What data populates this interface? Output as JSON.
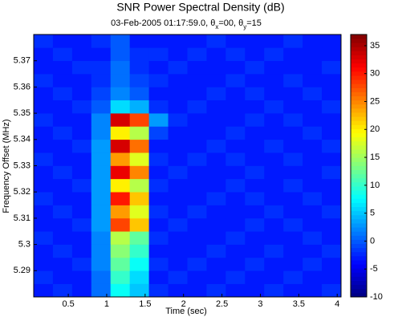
{
  "chart_data": {
    "type": "heatmap",
    "title": "SNR Power Spectral Density (dB)",
    "subtitle": [
      "03-Feb-2005 01:17:59.0,  θ",
      "x",
      "=00, θ",
      "y",
      "=15"
    ],
    "xlabel": "Time (sec)",
    "ylabel": "Frequency Offset (MHz)",
    "x_edges": [
      0.05,
      0.3,
      0.55,
      0.8,
      1.05,
      1.3,
      1.55,
      1.8,
      2.05,
      2.3,
      2.55,
      2.8,
      3.05,
      3.3,
      3.55,
      3.8,
      4.05
    ],
    "y_edges": [
      5.28,
      5.285,
      5.29,
      5.295,
      5.3,
      5.305,
      5.31,
      5.315,
      5.32,
      5.325,
      5.33,
      5.335,
      5.34,
      5.345,
      5.35,
      5.355,
      5.36,
      5.365,
      5.37,
      5.375,
      5.38
    ],
    "z": [
      [
        -3,
        -2,
        -3,
        1,
        8,
        5,
        -2,
        -3,
        -3,
        -2,
        -3,
        -3,
        -2,
        -3,
        -3,
        -2
      ],
      [
        -2,
        -3,
        -3,
        1,
        10,
        6,
        -3,
        -2,
        -3,
        -3,
        -2,
        -3,
        -3,
        -2,
        -3,
        -3
      ],
      [
        -3,
        -3,
        -2,
        2,
        12,
        8,
        -2,
        -3,
        -2,
        -3,
        -3,
        -2,
        -3,
        -3,
        -2,
        -3
      ],
      [
        -3,
        -2,
        -3,
        2,
        14,
        10,
        -3,
        -3,
        -3,
        -2,
        -3,
        -3,
        -2,
        -3,
        -3,
        -2
      ],
      [
        -2,
        -3,
        -3,
        2,
        16,
        12,
        -2,
        -3,
        -3,
        -3,
        -2,
        -3,
        -3,
        -3,
        -2,
        -3
      ],
      [
        -3,
        -3,
        -2,
        3,
        28,
        22,
        -3,
        -2,
        -3,
        -3,
        -3,
        -2,
        -3,
        -2,
        -3,
        -3
      ],
      [
        -3,
        -2,
        -3,
        3,
        24,
        18,
        -2,
        -3,
        -2,
        -3,
        -3,
        -3,
        -2,
        -3,
        -3,
        -2
      ],
      [
        -2,
        -3,
        -3,
        3,
        30,
        22,
        -3,
        -3,
        -3,
        -2,
        -3,
        -2,
        -3,
        -3,
        -2,
        -3
      ],
      [
        -3,
        -3,
        -2,
        3,
        20,
        16,
        -2,
        -3,
        -3,
        -3,
        -2,
        -3,
        -3,
        -2,
        -3,
        -3
      ],
      [
        -3,
        -2,
        -3,
        3,
        32,
        25,
        -3,
        -2,
        -3,
        -3,
        -3,
        -2,
        -3,
        -3,
        -3,
        -2
      ],
      [
        -2,
        -3,
        -3,
        3,
        24,
        18,
        -2,
        -3,
        -2,
        -3,
        -2,
        -3,
        -3,
        -2,
        -3,
        -3
      ],
      [
        -3,
        -3,
        -2,
        3,
        33,
        26,
        -3,
        -3,
        -3,
        -2,
        -3,
        -3,
        -2,
        -3,
        -3,
        -2
      ],
      [
        -3,
        -2,
        -3,
        2,
        20,
        16,
        -1,
        -3,
        -3,
        -3,
        -2,
        -3,
        -3,
        -3,
        -2,
        -3
      ],
      [
        -2,
        -3,
        -3,
        2,
        33,
        28,
        3,
        -2,
        -3,
        -3,
        -3,
        -2,
        -3,
        -2,
        -3,
        -3
      ],
      [
        -3,
        -3,
        -2,
        0,
        6,
        4,
        -2,
        -3,
        -2,
        -3,
        -3,
        -3,
        -2,
        -3,
        -3,
        -2
      ],
      [
        -3,
        -2,
        -3,
        -1,
        2,
        0,
        -3,
        -3,
        -3,
        -2,
        -3,
        -2,
        -3,
        -3,
        -2,
        -3
      ],
      [
        -2,
        -3,
        -3,
        -2,
        1,
        -1,
        -2,
        -3,
        -3,
        -3,
        -2,
        -3,
        -3,
        -2,
        -3,
        -3
      ],
      [
        -3,
        -3,
        -2,
        -2,
        1,
        -2,
        -3,
        -2,
        -3,
        -3,
        -3,
        -2,
        -3,
        -3,
        -3,
        -2
      ],
      [
        -3,
        -2,
        -3,
        -3,
        0,
        -2,
        -2,
        -3,
        -2,
        -3,
        -2,
        -3,
        -2,
        -3,
        -3,
        -3
      ],
      [
        -2,
        -3,
        -3,
        -2,
        0,
        -3,
        -3,
        -3,
        -3,
        -2,
        -3,
        -3,
        -3,
        -2,
        -3,
        -3
      ]
    ],
    "xlim": [
      0.05,
      4.05
    ],
    "xticks": [
      0.5,
      1,
      1.5,
      2,
      2.5,
      3,
      3.5,
      4
    ],
    "ylim": [
      5.28,
      5.38
    ],
    "yticks": [
      5.29,
      5.3,
      5.31,
      5.32,
      5.33,
      5.34,
      5.35,
      5.36,
      5.37
    ],
    "clim": [
      -10,
      37
    ],
    "cticks": [
      -10,
      -5,
      0,
      5,
      10,
      15,
      20,
      25,
      30,
      35
    ],
    "colormap": "jet"
  }
}
